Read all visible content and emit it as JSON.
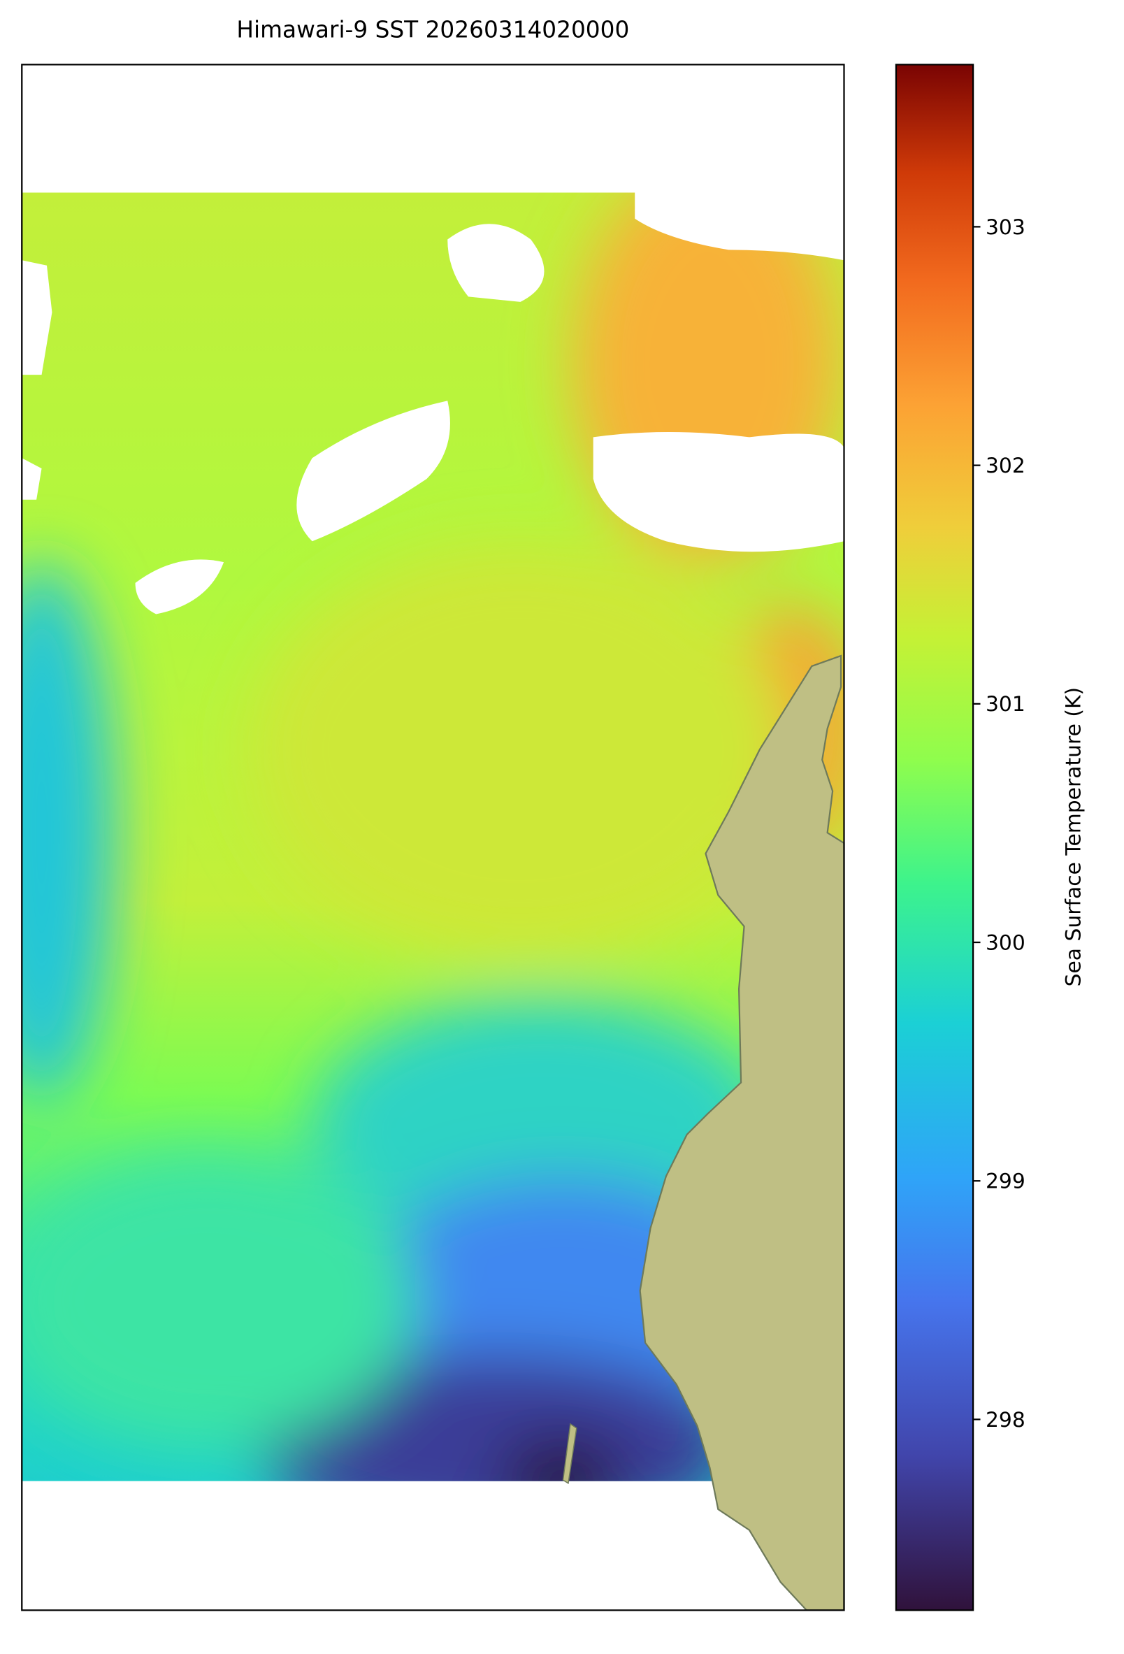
{
  "title": "Himawari-9 SST 20260314020000",
  "colorbar": {
    "label": "Sea Surface Temperature (K)",
    "lim": [
      297.2,
      303.68
    ],
    "ticks": [
      298,
      299,
      300,
      301,
      302,
      303
    ]
  }
}
